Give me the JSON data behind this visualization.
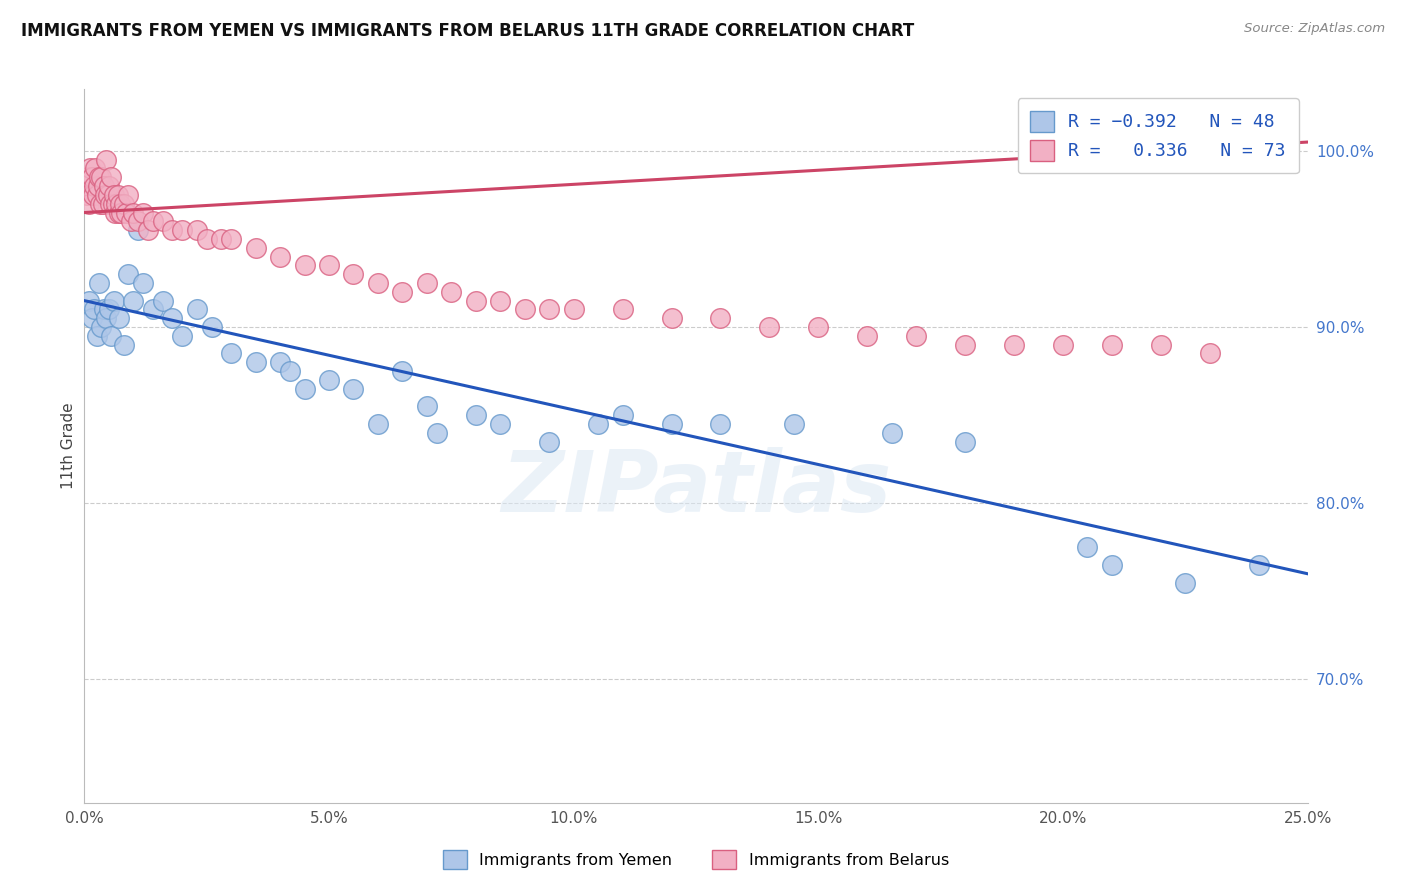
{
  "title": "IMMIGRANTS FROM YEMEN VS IMMIGRANTS FROM BELARUS 11TH GRADE CORRELATION CHART",
  "source": "Source: ZipAtlas.com",
  "ylabel": "11th Grade",
  "xlim": [
    0.0,
    25.0
  ],
  "ylim": [
    63.0,
    103.5
  ],
  "xlabel_vals": [
    0.0,
    5.0,
    10.0,
    15.0,
    20.0,
    25.0
  ],
  "ylabel_vals": [
    70.0,
    80.0,
    90.0,
    100.0
  ],
  "yemen_color": "#aec6e8",
  "yemen_edge": "#6699cc",
  "belarus_color": "#f2b0c4",
  "belarus_edge": "#d96080",
  "trend_yemen_color": "#2255bb",
  "trend_belarus_color": "#cc4466",
  "legend_label_yemen": "Immigrants from Yemen",
  "legend_label_belarus": "Immigrants from Belarus",
  "watermark": "ZIPatlas",
  "yemen_x": [
    0.1,
    0.15,
    0.2,
    0.25,
    0.3,
    0.35,
    0.4,
    0.45,
    0.5,
    0.55,
    0.6,
    0.7,
    0.8,
    0.9,
    1.0,
    1.1,
    1.2,
    1.4,
    1.6,
    1.8,
    2.0,
    2.3,
    2.6,
    3.0,
    3.5,
    4.0,
    4.2,
    4.5,
    5.0,
    5.5,
    6.0,
    6.5,
    7.0,
    7.2,
    8.0,
    8.5,
    9.5,
    10.5,
    11.0,
    12.0,
    13.0,
    14.5,
    16.5,
    18.0,
    20.5,
    21.0,
    22.5,
    24.0
  ],
  "yemen_y": [
    91.5,
    90.5,
    91.0,
    89.5,
    92.5,
    90.0,
    91.0,
    90.5,
    91.0,
    89.5,
    91.5,
    90.5,
    89.0,
    93.0,
    91.5,
    95.5,
    92.5,
    91.0,
    91.5,
    90.5,
    89.5,
    91.0,
    90.0,
    88.5,
    88.0,
    88.0,
    87.5,
    86.5,
    87.0,
    86.5,
    84.5,
    87.5,
    85.5,
    84.0,
    85.0,
    84.5,
    83.5,
    84.5,
    85.0,
    84.5,
    84.5,
    84.5,
    84.0,
    83.5,
    77.5,
    76.5,
    75.5,
    76.5
  ],
  "belarus_x": [
    0.05,
    0.07,
    0.1,
    0.12,
    0.15,
    0.17,
    0.2,
    0.22,
    0.25,
    0.27,
    0.3,
    0.32,
    0.35,
    0.38,
    0.4,
    0.42,
    0.45,
    0.48,
    0.5,
    0.52,
    0.55,
    0.58,
    0.6,
    0.63,
    0.65,
    0.68,
    0.7,
    0.73,
    0.75,
    0.8,
    0.85,
    0.9,
    0.95,
    1.0,
    1.1,
    1.2,
    1.3,
    1.4,
    1.6,
    1.8,
    2.0,
    2.3,
    2.5,
    2.8,
    3.0,
    3.5,
    4.0,
    4.5,
    5.0,
    5.5,
    6.0,
    6.5,
    7.0,
    7.5,
    8.0,
    8.5,
    9.0,
    9.5,
    10.0,
    11.0,
    12.0,
    13.0,
    14.0,
    15.0,
    16.0,
    17.0,
    18.0,
    19.0,
    20.0,
    21.0,
    22.0,
    23.0,
    24.5
  ],
  "belarus_y": [
    97.5,
    98.5,
    97.0,
    99.0,
    98.5,
    97.5,
    98.0,
    99.0,
    97.5,
    98.0,
    98.5,
    97.0,
    98.5,
    97.0,
    98.0,
    97.5,
    99.5,
    97.5,
    98.0,
    97.0,
    98.5,
    97.0,
    97.5,
    96.5,
    97.0,
    97.5,
    96.5,
    97.0,
    96.5,
    97.0,
    96.5,
    97.5,
    96.0,
    96.5,
    96.0,
    96.5,
    95.5,
    96.0,
    96.0,
    95.5,
    95.5,
    95.5,
    95.0,
    95.0,
    95.0,
    94.5,
    94.0,
    93.5,
    93.5,
    93.0,
    92.5,
    92.0,
    92.5,
    92.0,
    91.5,
    91.5,
    91.0,
    91.0,
    91.0,
    91.0,
    90.5,
    90.5,
    90.0,
    90.0,
    89.5,
    89.5,
    89.0,
    89.0,
    89.0,
    89.0,
    89.0,
    88.5,
    101.0
  ],
  "trend_yemen_x0": 0.0,
  "trend_yemen_y0": 91.5,
  "trend_yemen_x1": 25.0,
  "trend_yemen_y1": 76.0,
  "trend_belarus_x0": 0.0,
  "trend_belarus_y0": 96.5,
  "trend_belarus_x1": 25.0,
  "trend_belarus_y1": 100.5
}
